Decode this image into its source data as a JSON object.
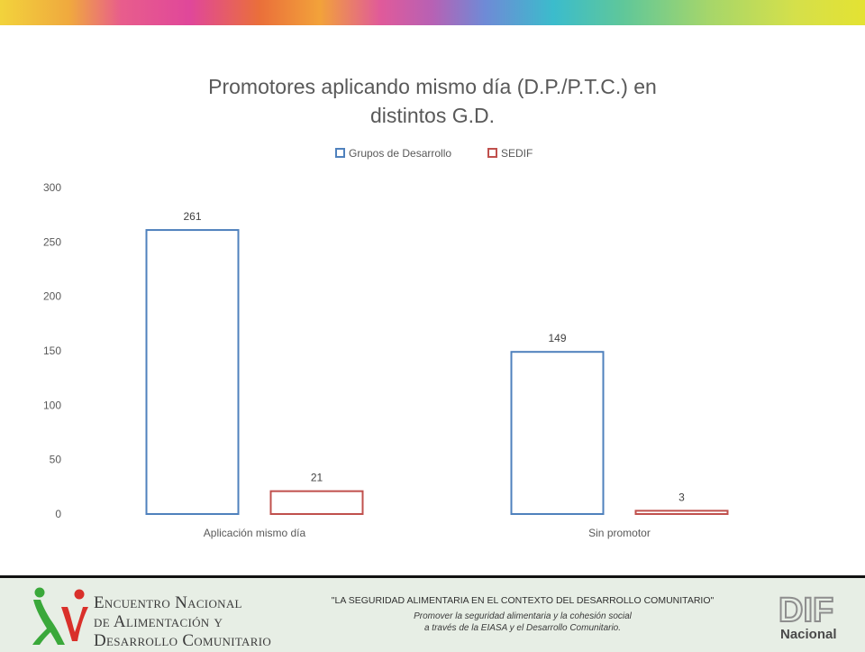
{
  "chart_data": {
    "type": "bar",
    "title_lines": [
      "Promotores aplicando mismo día (D.P./P.T.C.) en",
      "distintos G.D."
    ],
    "categories": [
      "Aplicación mismo día",
      "Sin promotor"
    ],
    "series": [
      {
        "name": "Grupos de Desarrollo",
        "values": [
          261,
          149
        ],
        "color": "#4f81bd"
      },
      {
        "name": "SEDIF",
        "values": [
          21,
          3
        ],
        "color": "#c0504d"
      }
    ],
    "ylim": [
      0,
      300
    ],
    "yticks": [
      0,
      50,
      100,
      150,
      200,
      250,
      300
    ],
    "grid": false,
    "legend_position": "top"
  },
  "footer": {
    "encuentro_lines": [
      "Encuentro Nacional",
      "de Alimentación y",
      "Desarrollo Comunitario"
    ],
    "quote": "\"LA SEGURIDAD ALIMENTARIA EN EL CONTEXTO DEL DESARROLLO COMUNITARIO\"",
    "subtitle_lines": [
      "Promover la seguridad alimentaria y la cohesión social",
      "a través de la EIASA y el Desarrollo Comunitario."
    ],
    "dif_text": "DIF",
    "dif_sub": "Nacional"
  },
  "colors": {
    "logo_green": "#3aa83a",
    "logo_red": "#d9302a",
    "dif_gray": "#8e8e8e",
    "footer_bg": "#e7eee5"
  }
}
